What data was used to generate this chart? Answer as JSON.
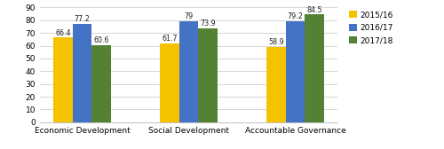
{
  "categories": [
    "Economic Development",
    "Social Development",
    "Accountable Governance"
  ],
  "series": {
    "2015/16": [
      66.4,
      61.7,
      58.9
    ],
    "2016/17": [
      77.2,
      79.0,
      79.2
    ],
    "2017/18": [
      60.6,
      73.9,
      84.5
    ]
  },
  "colors": {
    "2015/16": "#F5C200",
    "2016/17": "#4472C4",
    "2017/18": "#548235"
  },
  "legend_labels": [
    "2015/16",
    "2016/17",
    "2017/18"
  ],
  "ylim": [
    0,
    90
  ],
  "yticks": [
    0,
    10,
    20,
    30,
    40,
    50,
    60,
    70,
    80,
    90
  ],
  "bar_width": 0.18,
  "label_fontsize": 5.8,
  "tick_fontsize": 6.5,
  "legend_fontsize": 6.5,
  "background_color": "#ffffff",
  "grid_color": "#d0d0d0"
}
